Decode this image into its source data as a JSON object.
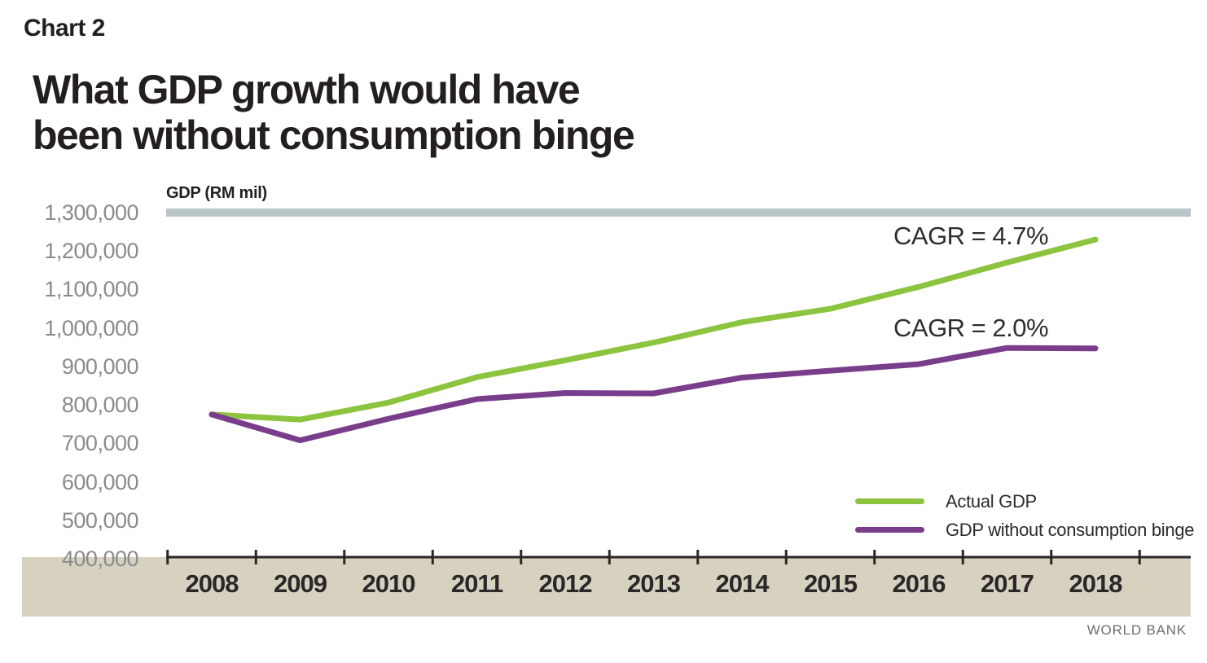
{
  "header": {
    "chart_label": "Chart 2",
    "title_line1": "What GDP growth would have",
    "title_line2": "been without consumption binge"
  },
  "chart": {
    "axis_title": "GDP (RM mil)",
    "annotations": [
      {
        "text": "CAGR = 4.7%",
        "series": "Actual GDP"
      },
      {
        "text": "CAGR = 2.0%",
        "series": "GDP without consumption binge"
      }
    ]
  },
  "legend": {
    "items": [
      {
        "label": "Actual GDP",
        "color": "#8cc43f"
      },
      {
        "label": "GDP without consumption binge",
        "color": "#7a3d8c"
      }
    ]
  },
  "footer": {
    "source": "WORLD BANK"
  },
  "colors": {
    "band": "#d7d1bf",
    "top_bar": "#b9c6c8",
    "axis": "#2b2728",
    "actual_gdp": "#8cc43f",
    "gdp_without_binge": "#7a3d8c",
    "title_text": "#231f20",
    "ytick_text": "#8b8b8e",
    "source_text": "#6d6e70"
  },
  "chart_data": {
    "type": "line",
    "title": "What GDP growth would have been without consumption binge",
    "xlabel": "",
    "ylabel": "GDP (RM mil)",
    "categories": [
      "2008",
      "2009",
      "2010",
      "2011",
      "2012",
      "2013",
      "2014",
      "2015",
      "2016",
      "2017",
      "2018"
    ],
    "series": [
      {
        "name": "Actual GDP",
        "color": "#8cc43f",
        "cagr": "4.7%",
        "values": [
          775000,
          762000,
          806000,
          872000,
          916000,
          962000,
          1015000,
          1050000,
          1107000,
          1170000,
          1230000
        ]
      },
      {
        "name": "GDP without consumption binge",
        "color": "#7a3d8c",
        "cagr": "2.0%",
        "values": [
          775000,
          708000,
          764000,
          815000,
          831000,
          830000,
          871000,
          889000,
          906000,
          948000,
          947000
        ]
      }
    ],
    "ylim": [
      400000,
      1300000
    ],
    "yticks": [
      {
        "value": 1300000,
        "label": "1,300,000"
      },
      {
        "value": 1200000,
        "label": "1,200,000"
      },
      {
        "value": 1100000,
        "label": "1,100,000"
      },
      {
        "value": 1000000,
        "label": "1,000,000"
      },
      {
        "value": 900000,
        "label": "900,000"
      },
      {
        "value": 800000,
        "label": "800,000"
      },
      {
        "value": 700000,
        "label": "700,000"
      },
      {
        "value": 600000,
        "label": "600,000"
      },
      {
        "value": 500000,
        "label": "500,000"
      },
      {
        "value": 400000,
        "label": "400,000"
      }
    ],
    "grid": false,
    "legend_position": "bottom-right"
  }
}
